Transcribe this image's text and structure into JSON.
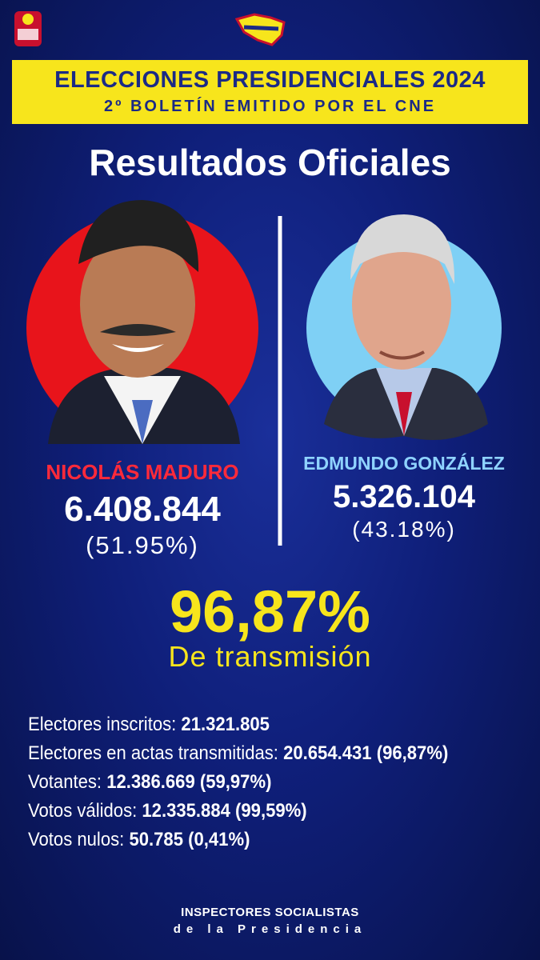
{
  "header": {
    "title": "ELECCIONES PRESIDENCIALES 2024",
    "subtitle": "2º BOLETÍN EMITIDO POR EL CNE"
  },
  "heading": "Resultados Oficiales",
  "candidates": [
    {
      "name": "NICOLÁS MADURO",
      "votes": "6.408.844",
      "percent": "(51.95%)"
    },
    {
      "name": "EDMUNDO GONZÁLEZ",
      "votes": "5.326.104",
      "percent": "(43.18%)"
    }
  ],
  "transmission": {
    "value": "96,87%",
    "label": "De transmisión"
  },
  "stats": [
    {
      "label": "Electores inscritos:",
      "value": "21.321.805"
    },
    {
      "label": "Electores en actas transmitidas:",
      "value": "20.654.431 (96,87%)"
    },
    {
      "label": "Votantes:",
      "value": "12.386.669 (59,97%)"
    },
    {
      "label": "Votos válidos:",
      "value": "12.335.884 (99,59%)"
    },
    {
      "label": "Votos nulos:",
      "value": "50.785 (0,41%)"
    }
  ],
  "footer": {
    "line1": "INSPECTORES SOCIALISTAS",
    "line2": "de la Presidencia"
  }
}
